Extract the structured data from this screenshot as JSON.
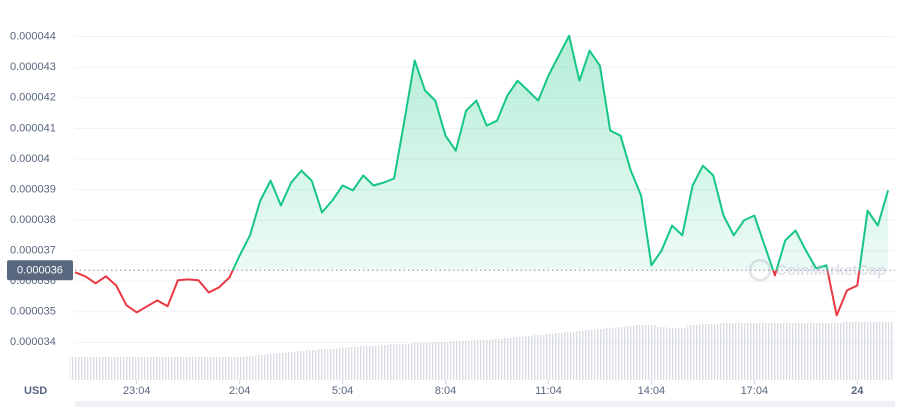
{
  "chart_data": {
    "type": "line",
    "y_axis_label": "USD",
    "watermark": "CoinMarketCap",
    "up_color": "#16c784",
    "down_color": "#ea3943",
    "grid": true,
    "baseline": {
      "value": 3.636e-05,
      "label": "0.000036"
    },
    "ylim": [
      3.28e-05,
      4.52e-05
    ],
    "yticks": [
      3.4e-05,
      3.5e-05,
      3.6e-05,
      3.7e-05,
      3.8e-05,
      3.9e-05,
      4e-05,
      4.1e-05,
      4.2e-05,
      4.3e-05,
      4.4e-05
    ],
    "xlim": [
      0,
      23.9
    ],
    "xticks": [
      {
        "value": 1.8,
        "label": "23:04"
      },
      {
        "value": 4.8,
        "label": "2:04"
      },
      {
        "value": 7.8,
        "label": "5:04"
      },
      {
        "value": 10.8,
        "label": "8:04"
      },
      {
        "value": 13.8,
        "label": "11:04"
      },
      {
        "value": 16.8,
        "label": "14:04"
      },
      {
        "value": 19.8,
        "label": "17:04"
      },
      {
        "value": 22.8,
        "label": "24"
      }
    ],
    "x": [
      0,
      0.3,
      0.6,
      0.9,
      1.2,
      1.5,
      1.8,
      2.1,
      2.4,
      2.7,
      3,
      3.3,
      3.6,
      3.9,
      4.2,
      4.5,
      4.8,
      5.1,
      5.4,
      5.7,
      6,
      6.3,
      6.6,
      6.9,
      7.2,
      7.5,
      7.8,
      8.1,
      8.4,
      8.7,
      9,
      9.3,
      9.6,
      9.9,
      10.2,
      10.5,
      10.8,
      11.1,
      11.4,
      11.7,
      12,
      12.3,
      12.6,
      12.9,
      13.2,
      13.5,
      13.8,
      14.1,
      14.4,
      14.7,
      15,
      15.3,
      15.6,
      15.9,
      16.2,
      16.5,
      16.8,
      17.1,
      17.4,
      17.7,
      18,
      18.3,
      18.6,
      18.9,
      19.2,
      19.5,
      19.8,
      20.1,
      20.4,
      20.7,
      21,
      21.3,
      21.6,
      21.9,
      22.2,
      22.5,
      22.8,
      23.1,
      23.4,
      23.7
    ],
    "values": [
      3.629e-05,
      3.616e-05,
      3.593e-05,
      3.616e-05,
      3.586e-05,
      3.521e-05,
      3.498e-05,
      3.518e-05,
      3.537e-05,
      3.518e-05,
      3.603e-05,
      3.606e-05,
      3.603e-05,
      3.563e-05,
      3.58e-05,
      3.612e-05,
      3.684e-05,
      3.75e-05,
      3.864e-05,
      3.929e-05,
      3.848e-05,
      3.923e-05,
      3.962e-05,
      3.929e-05,
      3.825e-05,
      3.864e-05,
      3.913e-05,
      3.897e-05,
      3.946e-05,
      3.913e-05,
      3.923e-05,
      3.936e-05,
      4.125e-05,
      4.322e-05,
      4.224e-05,
      4.191e-05,
      4.076e-05,
      4.027e-05,
      4.158e-05,
      4.191e-05,
      4.109e-05,
      4.125e-05,
      4.207e-05,
      4.256e-05,
      4.224e-05,
      4.191e-05,
      4.273e-05,
      4.338e-05,
      4.403e-05,
      4.256e-05,
      4.354e-05,
      4.305e-05,
      4.093e-05,
      4.076e-05,
      3.962e-05,
      3.88e-05,
      3.652e-05,
      3.701e-05,
      3.782e-05,
      3.75e-05,
      3.913e-05,
      3.978e-05,
      3.946e-05,
      3.815e-05,
      3.75e-05,
      3.799e-05,
      3.815e-05,
      3.717e-05,
      3.619e-05,
      3.733e-05,
      3.766e-05,
      3.701e-05,
      3.642e-05,
      3.652e-05,
      3.488e-05,
      3.57e-05,
      3.586e-05,
      3.831e-05,
      3.782e-05,
      3.897e-05
    ],
    "volume_lim": [
      0,
      120
    ],
    "volume": [
      23,
      23,
      23,
      23,
      23,
      23,
      23,
      23,
      23,
      23,
      23,
      23,
      23,
      23,
      23,
      23,
      23,
      24,
      25,
      26,
      27,
      28,
      29,
      30,
      31,
      31,
      32,
      33,
      34,
      34,
      35,
      36,
      36,
      37,
      37,
      38,
      38,
      39,
      39,
      40,
      40,
      41,
      42,
      43,
      44,
      45,
      46,
      47,
      48,
      49,
      50,
      51,
      52,
      53,
      54,
      55,
      55,
      53,
      52,
      52,
      55,
      56,
      56,
      57,
      57,
      57,
      57,
      57,
      57,
      57,
      57,
      57,
      57,
      57,
      57,
      58,
      58,
      58,
      58,
      58
    ]
  }
}
